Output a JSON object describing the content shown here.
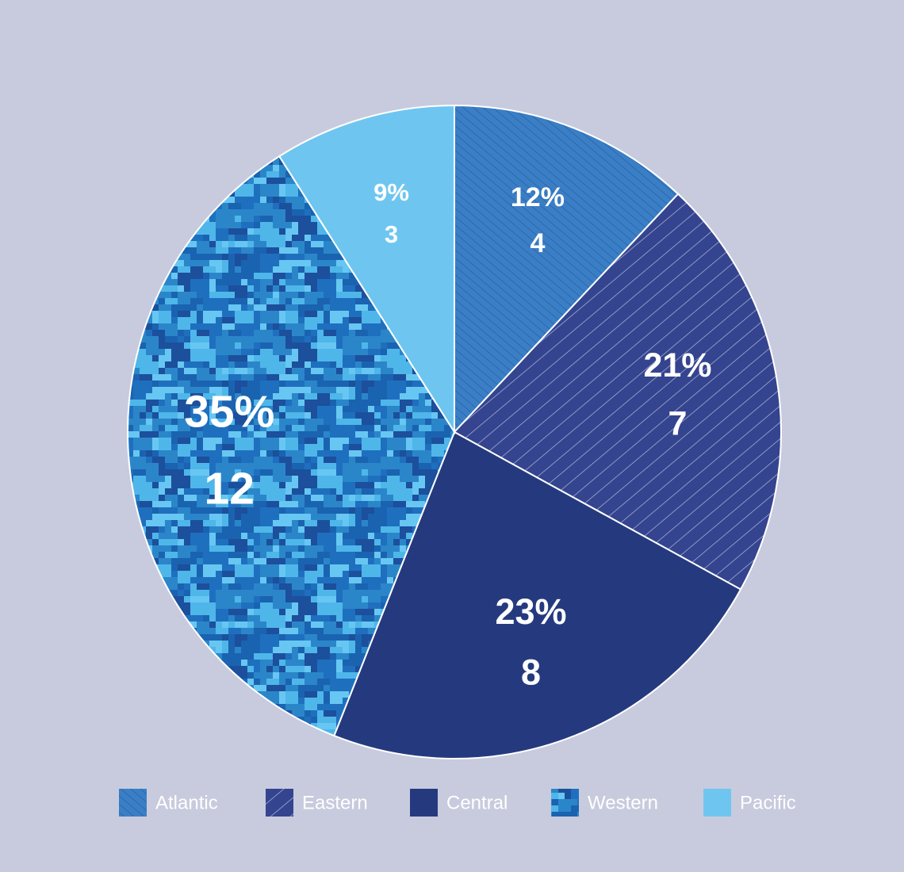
{
  "chart_data": {
    "type": "pie",
    "categories": [
      "Atlantic",
      "Eastern",
      "Central",
      "Western",
      "Pacific"
    ],
    "values": [
      12,
      21,
      23,
      35,
      9
    ],
    "value_labels": [
      "12%",
      "21%",
      "23%",
      "35%",
      "9%"
    ],
    "counts": [
      4,
      7,
      8,
      12,
      3
    ],
    "colors": [
      "#3a7fc6",
      "#34448f",
      "#253a7e",
      "#1a63b0",
      "#6ec6f0"
    ],
    "legend": "bottom"
  }
}
